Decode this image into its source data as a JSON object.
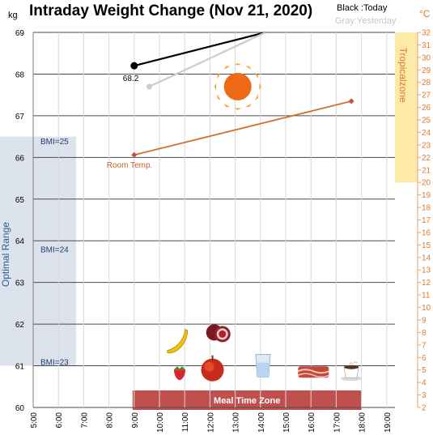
{
  "chart_data": {
    "type": "line",
    "title": "Intraday Weight Change (Nov 21, 2020)",
    "legend": {
      "black": "Black :Today",
      "gray": "Gray:Yesterday"
    },
    "y_left": {
      "unit": "kg",
      "min": 60,
      "max": 69,
      "ticks": [
        60,
        61,
        62,
        63,
        64,
        65,
        66,
        67,
        68,
        69
      ]
    },
    "y_right": {
      "unit": "°C",
      "min": 2,
      "max": 32,
      "ticks": [
        2,
        3,
        4,
        5,
        6,
        7,
        8,
        9,
        10,
        11,
        12,
        13,
        14,
        15,
        16,
        17,
        18,
        19,
        20,
        21,
        22,
        23,
        24,
        25,
        26,
        27,
        28,
        29,
        30,
        31,
        32
      ]
    },
    "x": {
      "ticks": [
        "5:00",
        "6:00",
        "7:00",
        "8:00",
        "9:00",
        "10:00",
        "11:00",
        "12:00",
        "13:00",
        "14:00",
        "15:00",
        "16:00",
        "17:00",
        "18:00",
        "19:00"
      ]
    },
    "bands": {
      "optimal": {
        "label": "Optimal Range",
        "kg_min": 61,
        "kg_max": 66.5
      },
      "tropical": {
        "label": "Tropicalzone",
        "temp_min": 20,
        "temp_max": 32
      },
      "meal": {
        "label": "Meal Time Zone",
        "hour_start": 9,
        "hour_end": 18
      }
    },
    "bmi_labels": [
      {
        "label": "BMI=25",
        "kg": 66.4
      },
      {
        "label": "BMI=24",
        "kg": 63.8
      },
      {
        "label": "BMI=23",
        "kg": 61.1
      }
    ],
    "series": [
      {
        "name": "Today",
        "color": "#000000",
        "axis": "left",
        "points": [
          {
            "hour": 9.0,
            "value": 68.2
          },
          {
            "hour": 14.2,
            "value": 69.0
          }
        ],
        "point_label": "68.2"
      },
      {
        "name": "Yesterday",
        "color": "#cccccc",
        "axis": "left",
        "points": [
          {
            "hour": 9.6,
            "value": 67.7
          },
          {
            "hour": 14.2,
            "value": 69.0
          }
        ]
      },
      {
        "name": "Room Temp.",
        "color": "#d4702b",
        "axis": "right",
        "points": [
          {
            "hour": 9.0,
            "value": 22.2
          },
          {
            "hour": 17.6,
            "value": 26.5
          }
        ],
        "label": "Room Temp."
      }
    ],
    "icons": [
      {
        "name": "sun-icon",
        "hour": 13.1,
        "kg": 67.7
      },
      {
        "name": "banana-icon",
        "hour": 10.7,
        "kg": 61.6
      },
      {
        "name": "pomegranate-icon",
        "hour": 12.3,
        "kg": 61.8
      },
      {
        "name": "strawberry-icon",
        "hour": 10.8,
        "kg": 60.85
      },
      {
        "name": "apple-icon",
        "hour": 12.1,
        "kg": 60.9
      },
      {
        "name": "water-glass-icon",
        "hour": 14.1,
        "kg": 61.0
      },
      {
        "name": "bacon-icon",
        "hour": 16.1,
        "kg": 60.85
      },
      {
        "name": "coffee-icon",
        "hour": 17.6,
        "kg": 60.85
      }
    ],
    "grid": true
  }
}
